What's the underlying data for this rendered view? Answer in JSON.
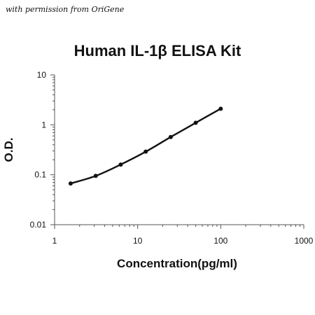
{
  "watermark": "with permission from OriGene",
  "chart_data": {
    "type": "line",
    "title": "Human IL-1β ELISA Kit",
    "xlabel": "Concentration(pg/ml)",
    "ylabel": "O.D.",
    "x_scale": "log",
    "y_scale": "log",
    "xlim": [
      1,
      1000
    ],
    "ylim": [
      0.01,
      10
    ],
    "x_ticks": [
      "1",
      "10",
      "100",
      "1000"
    ],
    "y_ticks": [
      "0.01",
      "0.1",
      "1",
      "10"
    ],
    "grid": false,
    "legend": "none",
    "series": [
      {
        "x": [
          1.56,
          3.13,
          6.25,
          12.5,
          25,
          50,
          100
        ],
        "y": [
          0.067,
          0.095,
          0.16,
          0.29,
          0.57,
          1.1,
          2.1
        ]
      }
    ],
    "colors": {
      "line": "#111111",
      "marker": "#111111",
      "axis": "#555555"
    }
  }
}
